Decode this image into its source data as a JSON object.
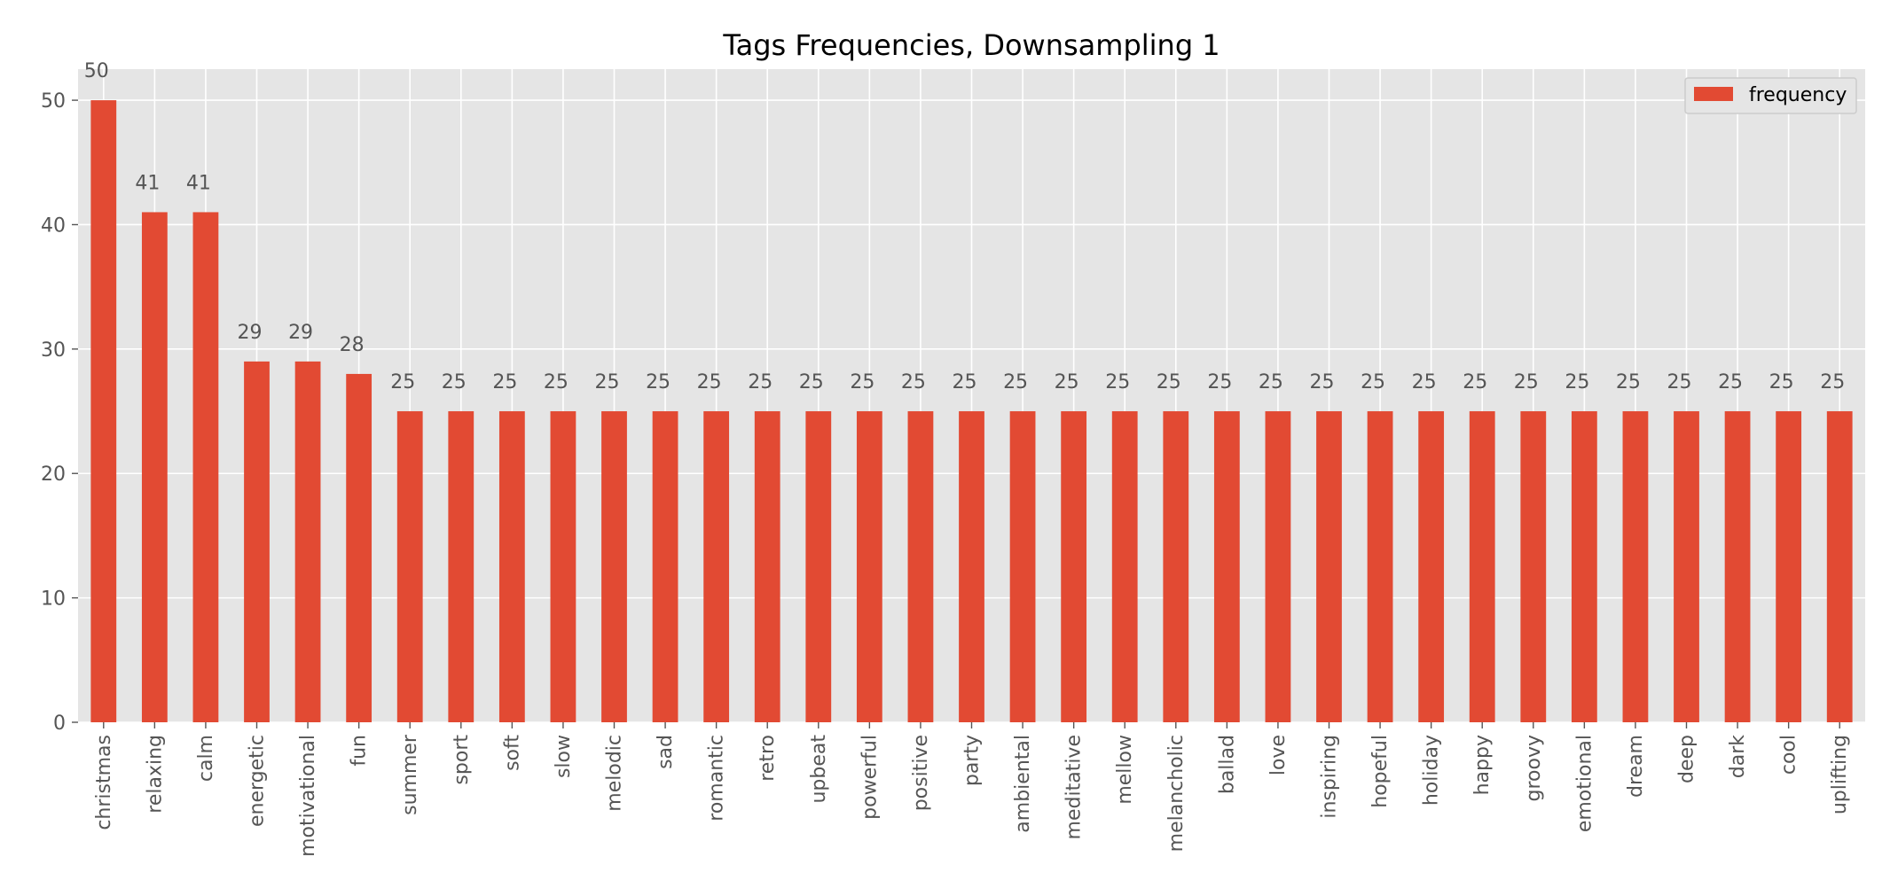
{
  "chart_data": {
    "type": "bar",
    "title": "Tags Frequencies, Downsampling 1",
    "xlabel": "",
    "ylabel": "",
    "ylim": [
      0,
      52.5
    ],
    "yticks": [
      0,
      10,
      20,
      30,
      40,
      50
    ],
    "grid": true,
    "legend_position": "top-right",
    "categories": [
      "christmas",
      "relaxing",
      "calm",
      "energetic",
      "motivational",
      "fun",
      "summer",
      "sport",
      "soft",
      "slow",
      "melodic",
      "sad",
      "romantic",
      "retro",
      "upbeat",
      "powerful",
      "positive",
      "party",
      "ambiental",
      "meditative",
      "mellow",
      "melancholic",
      "ballad",
      "love",
      "inspiring",
      "hopeful",
      "holiday",
      "happy",
      "groovy",
      "emotional",
      "dream",
      "deep",
      "dark",
      "cool",
      "uplifting"
    ],
    "series": [
      {
        "name": "frequency",
        "color": "#E24A33",
        "values": [
          50,
          41,
          41,
          29,
          29,
          28,
          25,
          25,
          25,
          25,
          25,
          25,
          25,
          25,
          25,
          25,
          25,
          25,
          25,
          25,
          25,
          25,
          25,
          25,
          25,
          25,
          25,
          25,
          25,
          25,
          25,
          25,
          25,
          25,
          25
        ]
      }
    ],
    "background_color": "#E5E5E5"
  }
}
